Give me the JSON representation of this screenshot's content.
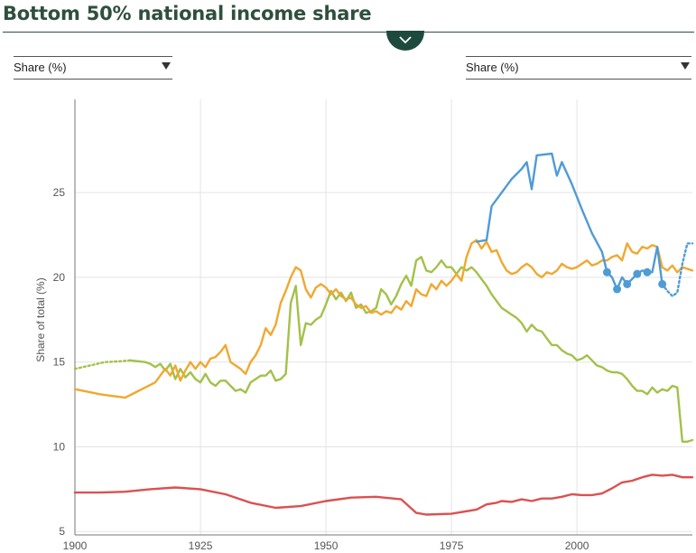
{
  "page": {
    "title": "Bottom 50% national income share",
    "left_select": "Share (%)",
    "right_select": "Share (%)",
    "collapse_icon": "chevron-down-icon"
  },
  "chart_data": {
    "type": "line",
    "title": "Bottom 50% national income share",
    "xlabel": "",
    "ylabel": "Share of total (%)",
    "xlim": [
      1900,
      2023
    ],
    "ylim": [
      4.8,
      30.5
    ],
    "xticks": [
      1900,
      1925,
      1950,
      1975,
      2000
    ],
    "yticks": [
      5,
      10,
      15,
      20,
      25
    ],
    "grid": "vertical and horizontal",
    "series": [
      {
        "name": "Blue series",
        "color": "#4f9bd5",
        "points": [
          [
            1980,
            22.1
          ],
          [
            1982,
            22.2
          ],
          [
            1983,
            24.2
          ],
          [
            1985,
            25.0
          ],
          [
            1987,
            25.8
          ],
          [
            1989,
            26.4
          ],
          [
            1990,
            26.8
          ],
          [
            1991,
            25.2
          ],
          [
            1992,
            27.2
          ],
          [
            1995,
            27.3
          ],
          [
            1996,
            26.0
          ],
          [
            1997,
            26.8
          ],
          [
            1999,
            25.5
          ],
          [
            2001,
            24.0
          ],
          [
            2003,
            22.6
          ],
          [
            2005,
            21.5
          ],
          [
            2006,
            20.3
          ],
          [
            2007,
            20.0
          ],
          [
            2008,
            19.3
          ],
          [
            2009,
            20.0
          ],
          [
            2010,
            19.6
          ],
          [
            2012,
            20.2
          ],
          [
            2013,
            20.4
          ],
          [
            2014,
            20.3
          ],
          [
            2015,
            20.3
          ],
          [
            2016,
            21.8
          ],
          [
            2017,
            19.6
          ]
        ],
        "markers": [
          [
            2006,
            20.3
          ],
          [
            2008,
            19.3
          ],
          [
            2010,
            19.6
          ],
          [
            2012,
            20.2
          ],
          [
            2014,
            20.3
          ],
          [
            2017,
            19.6
          ]
        ],
        "dotted_points": [
          [
            2017,
            19.6
          ],
          [
            2018,
            19.2
          ],
          [
            2019,
            18.9
          ],
          [
            2020,
            19.1
          ],
          [
            2021,
            20.8
          ],
          [
            2022,
            22.0
          ],
          [
            2023,
            22.0
          ]
        ]
      },
      {
        "name": "Orange series",
        "color": "#f0a830",
        "points": [
          [
            1900,
            13.4
          ],
          [
            1905,
            13.1
          ],
          [
            1910,
            12.9
          ],
          [
            1912,
            13.2
          ],
          [
            1914,
            13.5
          ],
          [
            1916,
            13.8
          ],
          [
            1917,
            14.2
          ],
          [
            1918,
            14.6
          ],
          [
            1919,
            14.2
          ],
          [
            1920,
            14.8
          ],
          [
            1921,
            13.9
          ],
          [
            1922,
            14.5
          ],
          [
            1923,
            15.0
          ],
          [
            1924,
            14.6
          ],
          [
            1925,
            15.0
          ],
          [
            1926,
            14.7
          ],
          [
            1927,
            15.2
          ],
          [
            1928,
            15.3
          ],
          [
            1929,
            15.6
          ],
          [
            1930,
            16.0
          ],
          [
            1931,
            15.0
          ],
          [
            1932,
            14.8
          ],
          [
            1933,
            14.6
          ],
          [
            1934,
            14.3
          ],
          [
            1935,
            15.0
          ],
          [
            1936,
            15.4
          ],
          [
            1937,
            16.0
          ],
          [
            1938,
            17.0
          ],
          [
            1939,
            16.6
          ],
          [
            1940,
            17.2
          ],
          [
            1941,
            18.5
          ],
          [
            1942,
            19.2
          ],
          [
            1943,
            20.0
          ],
          [
            1944,
            20.6
          ],
          [
            1945,
            20.4
          ],
          [
            1946,
            19.3
          ],
          [
            1947,
            18.8
          ],
          [
            1948,
            19.4
          ],
          [
            1949,
            19.6
          ],
          [
            1950,
            19.4
          ],
          [
            1951,
            19.0
          ],
          [
            1952,
            19.3
          ],
          [
            1953,
            18.9
          ],
          [
            1954,
            18.7
          ],
          [
            1955,
            18.8
          ],
          [
            1956,
            18.4
          ],
          [
            1957,
            18.2
          ],
          [
            1958,
            18.3
          ],
          [
            1959,
            17.9
          ],
          [
            1960,
            18.0
          ],
          [
            1961,
            17.8
          ],
          [
            1962,
            18.0
          ],
          [
            1963,
            17.9
          ],
          [
            1964,
            18.3
          ],
          [
            1965,
            18.1
          ],
          [
            1966,
            18.6
          ],
          [
            1967,
            18.3
          ],
          [
            1968,
            19.3
          ],
          [
            1969,
            19.0
          ],
          [
            1970,
            18.9
          ],
          [
            1971,
            19.6
          ],
          [
            1972,
            19.3
          ],
          [
            1973,
            19.8
          ],
          [
            1974,
            19.5
          ],
          [
            1975,
            19.8
          ],
          [
            1976,
            20.2
          ],
          [
            1977,
            19.8
          ],
          [
            1978,
            21.2
          ],
          [
            1979,
            22.0
          ],
          [
            1980,
            22.2
          ],
          [
            1981,
            21.7
          ],
          [
            1982,
            22.1
          ],
          [
            1983,
            21.5
          ],
          [
            1984,
            21.6
          ],
          [
            1985,
            20.9
          ],
          [
            1986,
            20.4
          ],
          [
            1987,
            20.2
          ],
          [
            1988,
            20.3
          ],
          [
            1989,
            20.6
          ],
          [
            1990,
            20.8
          ],
          [
            1991,
            20.6
          ],
          [
            1992,
            20.2
          ],
          [
            1993,
            20.0
          ],
          [
            1994,
            20.3
          ],
          [
            1995,
            20.2
          ],
          [
            1996,
            20.4
          ],
          [
            1997,
            20.8
          ],
          [
            1998,
            20.6
          ],
          [
            1999,
            20.5
          ],
          [
            2000,
            20.6
          ],
          [
            2001,
            20.8
          ],
          [
            2002,
            21.0
          ],
          [
            2003,
            20.7
          ],
          [
            2004,
            20.8
          ],
          [
            2005,
            21.0
          ],
          [
            2006,
            21.0
          ],
          [
            2007,
            21.2
          ],
          [
            2008,
            21.3
          ],
          [
            2009,
            21.0
          ],
          [
            2010,
            22.0
          ],
          [
            2011,
            21.5
          ],
          [
            2012,
            21.4
          ],
          [
            2013,
            21.8
          ],
          [
            2014,
            21.7
          ],
          [
            2015,
            21.9
          ],
          [
            2016,
            21.8
          ],
          [
            2017,
            20.6
          ],
          [
            2018,
            20.4
          ],
          [
            2019,
            20.7
          ],
          [
            2020,
            20.3
          ],
          [
            2021,
            20.6
          ],
          [
            2022,
            20.5
          ],
          [
            2023,
            20.4
          ]
        ]
      },
      {
        "name": "Green series",
        "color": "#a3c14a",
        "points": [
          [
            1911,
            15.1
          ],
          [
            1914,
            15.0
          ],
          [
            1915,
            14.9
          ],
          [
            1916,
            14.7
          ],
          [
            1917,
            14.9
          ],
          [
            1918,
            14.5
          ],
          [
            1919,
            14.9
          ],
          [
            1920,
            14.0
          ],
          [
            1921,
            14.6
          ],
          [
            1922,
            14.1
          ],
          [
            1923,
            14.4
          ],
          [
            1924,
            14.0
          ],
          [
            1925,
            13.8
          ],
          [
            1926,
            14.3
          ],
          [
            1927,
            13.8
          ],
          [
            1928,
            13.6
          ],
          [
            1929,
            13.9
          ],
          [
            1930,
            13.9
          ],
          [
            1931,
            13.6
          ],
          [
            1932,
            13.3
          ],
          [
            1933,
            13.4
          ],
          [
            1934,
            13.2
          ],
          [
            1935,
            13.8
          ],
          [
            1936,
            14.0
          ],
          [
            1937,
            14.2
          ],
          [
            1938,
            14.2
          ],
          [
            1939,
            14.5
          ],
          [
            1940,
            13.9
          ],
          [
            1941,
            14.0
          ],
          [
            1942,
            14.3
          ],
          [
            1943,
            18.5
          ],
          [
            1944,
            19.5
          ],
          [
            1945,
            16.0
          ],
          [
            1946,
            17.3
          ],
          [
            1947,
            17.2
          ],
          [
            1948,
            17.5
          ],
          [
            1949,
            17.7
          ],
          [
            1950,
            18.4
          ],
          [
            1951,
            19.2
          ],
          [
            1952,
            18.7
          ],
          [
            1953,
            19.1
          ],
          [
            1954,
            18.6
          ],
          [
            1955,
            19.1
          ],
          [
            1956,
            18.2
          ],
          [
            1957,
            18.4
          ],
          [
            1958,
            17.9
          ],
          [
            1959,
            18.0
          ],
          [
            1960,
            18.2
          ],
          [
            1961,
            19.3
          ],
          [
            1962,
            19.0
          ],
          [
            1963,
            18.4
          ],
          [
            1964,
            18.9
          ],
          [
            1965,
            19.6
          ],
          [
            1966,
            20.1
          ],
          [
            1967,
            19.5
          ],
          [
            1968,
            21.0
          ],
          [
            1969,
            21.2
          ],
          [
            1970,
            20.4
          ],
          [
            1971,
            20.3
          ],
          [
            1972,
            20.6
          ],
          [
            1973,
            21.0
          ],
          [
            1974,
            20.6
          ],
          [
            1975,
            20.6
          ],
          [
            1976,
            20.2
          ],
          [
            1977,
            20.6
          ],
          [
            1978,
            20.4
          ],
          [
            1979,
            20.6
          ],
          [
            1980,
            20.3
          ],
          [
            1981,
            19.9
          ],
          [
            1982,
            19.5
          ],
          [
            1983,
            19.0
          ],
          [
            1984,
            18.6
          ],
          [
            1985,
            18.2
          ],
          [
            1986,
            18.0
          ],
          [
            1987,
            17.8
          ],
          [
            1988,
            17.6
          ],
          [
            1989,
            17.3
          ],
          [
            1990,
            16.8
          ],
          [
            1991,
            17.2
          ],
          [
            1992,
            16.9
          ],
          [
            1993,
            16.8
          ],
          [
            1994,
            16.4
          ],
          [
            1995,
            16.0
          ],
          [
            1996,
            16.0
          ],
          [
            1997,
            15.7
          ],
          [
            1998,
            15.5
          ],
          [
            1999,
            15.4
          ],
          [
            2000,
            15.1
          ],
          [
            2001,
            15.2
          ],
          [
            2002,
            15.4
          ],
          [
            2003,
            15.1
          ],
          [
            2004,
            14.8
          ],
          [
            2005,
            14.7
          ],
          [
            2006,
            14.5
          ],
          [
            2007,
            14.4
          ],
          [
            2008,
            14.4
          ],
          [
            2009,
            14.3
          ],
          [
            2010,
            14.0
          ],
          [
            2011,
            13.6
          ],
          [
            2012,
            13.3
          ],
          [
            2013,
            13.3
          ],
          [
            2014,
            13.1
          ],
          [
            2015,
            13.5
          ],
          [
            2016,
            13.2
          ],
          [
            2017,
            13.4
          ],
          [
            2018,
            13.3
          ],
          [
            2019,
            13.6
          ],
          [
            2020,
            13.5
          ],
          [
            2021,
            10.3
          ],
          [
            2022,
            10.3
          ],
          [
            2023,
            10.4
          ]
        ],
        "dotted_points": [
          [
            1900,
            14.6
          ],
          [
            1903,
            14.8
          ],
          [
            1906,
            15.0
          ],
          [
            1909,
            15.05
          ],
          [
            1911,
            15.1
          ]
        ]
      },
      {
        "name": "Red series",
        "color": "#dc5050",
        "points": [
          [
            1900,
            7.3
          ],
          [
            1905,
            7.3
          ],
          [
            1910,
            7.35
          ],
          [
            1915,
            7.5
          ],
          [
            1920,
            7.6
          ],
          [
            1925,
            7.5
          ],
          [
            1930,
            7.2
          ],
          [
            1935,
            6.7
          ],
          [
            1940,
            6.4
          ],
          [
            1945,
            6.5
          ],
          [
            1950,
            6.8
          ],
          [
            1955,
            7.0
          ],
          [
            1960,
            7.05
          ],
          [
            1965,
            6.9
          ],
          [
            1968,
            6.1
          ],
          [
            1970,
            6.0
          ],
          [
            1975,
            6.05
          ],
          [
            1980,
            6.3
          ],
          [
            1982,
            6.6
          ],
          [
            1984,
            6.7
          ],
          [
            1985,
            6.8
          ],
          [
            1987,
            6.75
          ],
          [
            1989,
            6.9
          ],
          [
            1991,
            6.8
          ],
          [
            1993,
            6.95
          ],
          [
            1995,
            6.95
          ],
          [
            1997,
            7.05
          ],
          [
            1999,
            7.2
          ],
          [
            2001,
            7.15
          ],
          [
            2003,
            7.15
          ],
          [
            2005,
            7.25
          ],
          [
            2007,
            7.55
          ],
          [
            2009,
            7.9
          ],
          [
            2011,
            8.0
          ],
          [
            2013,
            8.2
          ],
          [
            2015,
            8.35
          ],
          [
            2017,
            8.3
          ],
          [
            2019,
            8.35
          ],
          [
            2021,
            8.2
          ],
          [
            2023,
            8.2
          ]
        ]
      }
    ]
  }
}
